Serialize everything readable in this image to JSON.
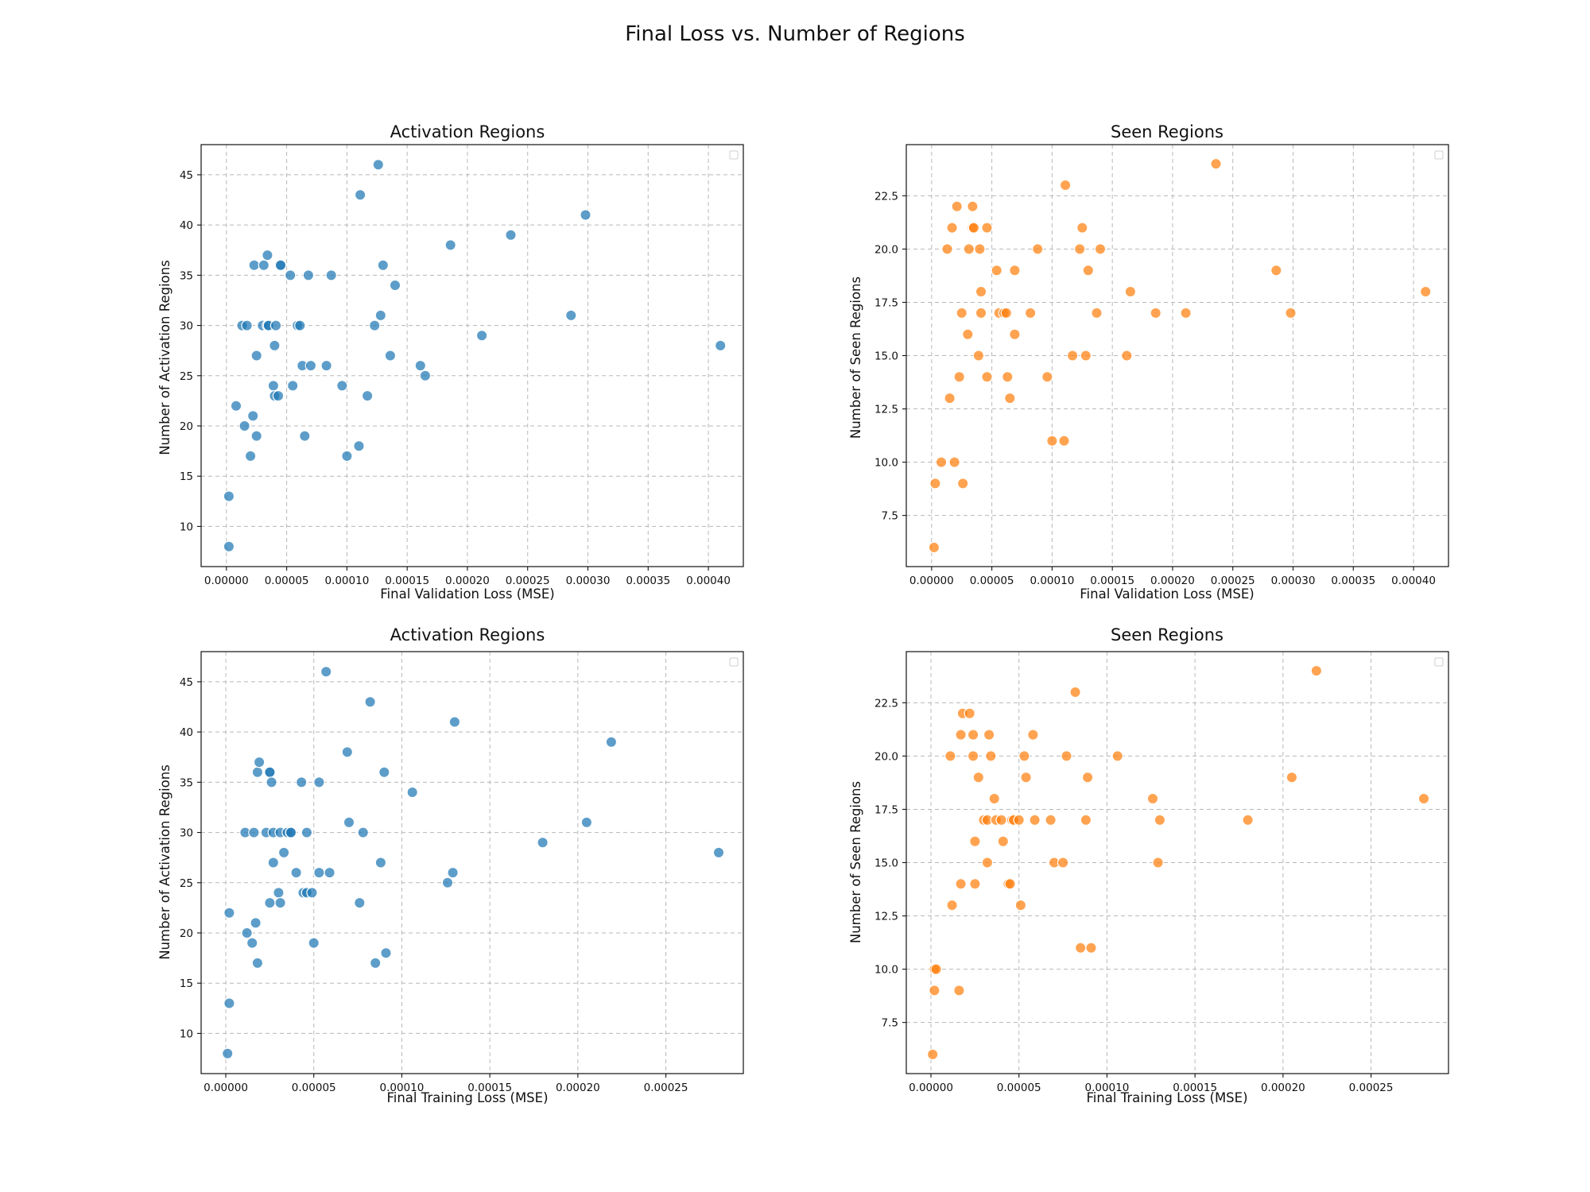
{
  "figure": {
    "title": "Final Loss vs. Number of Regions"
  },
  "chart_data": [
    {
      "type": "scatter",
      "title": "Activation Regions",
      "xlabel": "Final Validation Loss (MSE)",
      "ylabel": "Number of Activation Regions",
      "xlim": [
        -2.1e-05,
        0.000429
      ],
      "ylim": [
        6,
        48
      ],
      "xticks": [
        0.0,
        5e-05,
        0.0001,
        0.00015,
        0.0002,
        0.00025,
        0.0003,
        0.00035,
        0.0004
      ],
      "xtick_labels": [
        "0.00000",
        "0.00005",
        "0.00010",
        "0.00015",
        "0.00020",
        "0.00025",
        "0.00030",
        "0.00035",
        "0.00040"
      ],
      "yticks": [
        10,
        15,
        20,
        25,
        30,
        35,
        40,
        45
      ],
      "ytick_labels": [
        "10",
        "15",
        "20",
        "25",
        "30",
        "35",
        "40",
        "45"
      ],
      "grid": true,
      "legend": "top-right (empty)",
      "color": "#1f77b4",
      "x": [
        2e-06,
        2e-06,
        8e-06,
        1.5e-05,
        1.3e-05,
        1.7e-05,
        2e-05,
        2.2e-05,
        2.3e-05,
        2.5e-05,
        2.5e-05,
        3e-05,
        3.1e-05,
        3.4e-05,
        3.4e-05,
        3.5e-05,
        3.9e-05,
        4e-05,
        4e-05,
        4.1e-05,
        4.3e-05,
        4.5e-05,
        4.5e-05,
        5.3e-05,
        5.5e-05,
        5.9e-05,
        6.1e-05,
        6.3e-05,
        6.5e-05,
        6.8e-05,
        7e-05,
        8.3e-05,
        8.7e-05,
        9.6e-05,
        0.0001,
        0.00011,
        0.000111,
        0.000117,
        0.000123,
        0.000126,
        0.000128,
        0.00013,
        0.000136,
        0.00014,
        0.000161,
        0.000165,
        0.000186,
        0.000212,
        0.000236,
        0.000286,
        0.000298,
        0.00041
      ],
      "y": [
        8,
        13,
        22,
        20,
        30,
        30,
        17,
        21,
        36,
        27,
        19,
        30,
        36,
        37,
        30,
        30,
        24,
        23,
        28,
        30,
        23,
        36,
        36,
        35,
        24,
        30,
        30,
        26,
        19,
        35,
        26,
        26,
        35,
        24,
        17,
        18,
        43,
        23,
        30,
        46,
        31,
        36,
        27,
        34,
        26,
        25,
        38,
        29,
        39,
        31,
        41,
        28
      ]
    },
    {
      "type": "scatter",
      "title": "Seen Regions",
      "xlabel": "Final Validation Loss (MSE)",
      "ylabel": "Number of Seen Regions",
      "xlim": [
        -2.1e-05,
        0.000429
      ],
      "ylim": [
        5.1,
        24.9
      ],
      "xticks": [
        0.0,
        5e-05,
        0.0001,
        0.00015,
        0.0002,
        0.00025,
        0.0003,
        0.00035,
        0.0004
      ],
      "xtick_labels": [
        "0.00000",
        "0.00005",
        "0.00010",
        "0.00015",
        "0.00020",
        "0.00025",
        "0.00030",
        "0.00035",
        "0.00040"
      ],
      "yticks": [
        7.5,
        10,
        12.5,
        15,
        17.5,
        20,
        22.5
      ],
      "ytick_labels": [
        "7.5",
        "10.0",
        "12.5",
        "15.0",
        "17.5",
        "20.0",
        "22.5"
      ],
      "grid": true,
      "legend": "top-right (empty)",
      "color": "#ff7f0e",
      "x": [
        2e-06,
        3e-06,
        8e-06,
        1.3e-05,
        1.5e-05,
        1.7e-05,
        1.9e-05,
        2.1e-05,
        2.3e-05,
        2.5e-05,
        2.6e-05,
        3e-05,
        3.1e-05,
        3.4e-05,
        3.4e-05,
        3.5e-05,
        3.9e-05,
        4e-05,
        4.1e-05,
        4.1e-05,
        4.6e-05,
        4.6e-05,
        5.4e-05,
        5.6e-05,
        6e-05,
        6.2e-05,
        6.3e-05,
        6.5e-05,
        6.9e-05,
        6.9e-05,
        8.2e-05,
        8.8e-05,
        9.6e-05,
        0.0001,
        0.00011,
        0.000111,
        0.000117,
        0.000123,
        0.000125,
        0.000128,
        0.00013,
        0.000137,
        0.00014,
        0.000162,
        0.000165,
        0.000186,
        0.000211,
        0.000236,
        0.000286,
        0.000298,
        0.00041
      ],
      "y": [
        6,
        9,
        10,
        20,
        13,
        21,
        10,
        22,
        14,
        17,
        9,
        16,
        20,
        21,
        22,
        21,
        15,
        20,
        17,
        18,
        21,
        14,
        19,
        17,
        17,
        17,
        14,
        13,
        16,
        19,
        17,
        20,
        14,
        11,
        11,
        23,
        15,
        20,
        21,
        15,
        19,
        17,
        20,
        15,
        18,
        17,
        17,
        24,
        19,
        17,
        18
      ]
    },
    {
      "type": "scatter",
      "title": "Activation Regions",
      "xlabel": "Final Training Loss (MSE)",
      "ylabel": "Number of Activation Regions",
      "xlim": [
        -1.4e-05,
        0.000294
      ],
      "ylim": [
        6,
        48
      ],
      "xticks": [
        0.0,
        5e-05,
        0.0001,
        0.00015,
        0.0002,
        0.00025
      ],
      "xtick_labels": [
        "0.00000",
        "0.00005",
        "0.00010",
        "0.00015",
        "0.00020",
        "0.00025"
      ],
      "yticks": [
        10,
        15,
        20,
        25,
        30,
        35,
        40,
        45
      ],
      "ytick_labels": [
        "10",
        "15",
        "20",
        "25",
        "30",
        "35",
        "40",
        "45"
      ],
      "grid": true,
      "legend": "top-right (empty)",
      "color": "#1f77b4",
      "x": [
        1e-06,
        2e-06,
        2e-06,
        1.1e-05,
        1.2e-05,
        1.5e-05,
        1.6e-05,
        1.7e-05,
        1.8e-05,
        1.8e-05,
        1.9e-05,
        2.3e-05,
        2.5e-05,
        2.5e-05,
        2.5e-05,
        2.6e-05,
        2.7e-05,
        2.7e-05,
        3e-05,
        3.1e-05,
        3.1e-05,
        3.3e-05,
        3.5e-05,
        3.7e-05,
        3.7e-05,
        4e-05,
        4.3e-05,
        4.4e-05,
        4.6e-05,
        4.6e-05,
        4.9e-05,
        5e-05,
        5.3e-05,
        5.3e-05,
        5.7e-05,
        5.9e-05,
        6.9e-05,
        7e-05,
        7.6e-05,
        7.8e-05,
        8.2e-05,
        8.5e-05,
        8.8e-05,
        9e-05,
        9.1e-05,
        0.000106,
        0.000126,
        0.000129,
        0.00013,
        0.00018,
        0.000205,
        0.000219,
        0.00028
      ],
      "y": [
        8,
        13,
        22,
        30,
        20,
        19,
        30,
        21,
        17,
        36,
        37,
        30,
        36,
        36,
        23,
        35,
        30,
        27,
        24,
        23,
        30,
        28,
        30,
        30,
        30,
        26,
        35,
        24,
        24,
        30,
        24,
        19,
        35,
        26,
        46,
        26,
        38,
        31,
        23,
        30,
        43,
        17,
        27,
        36,
        18,
        34,
        25,
        26,
        41,
        29,
        31,
        39,
        28
      ]
    },
    {
      "type": "scatter",
      "title": "Seen Regions",
      "xlabel": "Final Training Loss (MSE)",
      "ylabel": "Number of Seen Regions",
      "xlim": [
        -1.4e-05,
        0.000294
      ],
      "ylim": [
        5.1,
        24.9
      ],
      "xticks": [
        0.0,
        5e-05,
        0.0001,
        0.00015,
        0.0002,
        0.00025
      ],
      "xtick_labels": [
        "0.00000",
        "0.00005",
        "0.00010",
        "0.00015",
        "0.00020",
        "0.00025"
      ],
      "yticks": [
        7.5,
        10,
        12.5,
        15,
        17.5,
        20,
        22.5
      ],
      "ytick_labels": [
        "7.5",
        "10.0",
        "12.5",
        "15.0",
        "17.5",
        "20.0",
        "22.5"
      ],
      "grid": true,
      "legend": "top-right (empty)",
      "color": "#ff7f0e",
      "x": [
        1e-06,
        2e-06,
        2e-06,
        3e-06,
        1.1e-05,
        1.2e-05,
        1.6e-05,
        1.7e-05,
        1.7e-05,
        1.8e-05,
        2.2e-05,
        2.4e-05,
        2.4e-05,
        2.5e-05,
        2.5e-05,
        2.7e-05,
        3e-05,
        3.2e-05,
        3.2e-05,
        3.3e-05,
        3.4e-05,
        3.6e-05,
        3.7e-05,
        4e-05,
        4.1e-05,
        4.4e-05,
        4.5e-05,
        4.6e-05,
        4.7e-05,
        5e-05,
        5.1e-05,
        5.3e-05,
        5.4e-05,
        5.8e-05,
        5.9e-05,
        6.8e-05,
        7e-05,
        7.5e-05,
        7.7e-05,
        8.2e-05,
        8.5e-05,
        8.8e-05,
        8.9e-05,
        9.1e-05,
        0.000106,
        0.000126,
        0.000129,
        0.00013,
        0.00018,
        0.000205,
        0.000219,
        0.00028
      ],
      "y": [
        6,
        10,
        9,
        10,
        20,
        13,
        9,
        14,
        21,
        22,
        22,
        21,
        20,
        16,
        14,
        19,
        17,
        17,
        15,
        21,
        20,
        18,
        17,
        17,
        16,
        14,
        14,
        17,
        17,
        17,
        13,
        20,
        19,
        21,
        17,
        17,
        15,
        15,
        20,
        23,
        11,
        17,
        19,
        11,
        20,
        18,
        15,
        17,
        17,
        19,
        24,
        18
      ]
    }
  ]
}
